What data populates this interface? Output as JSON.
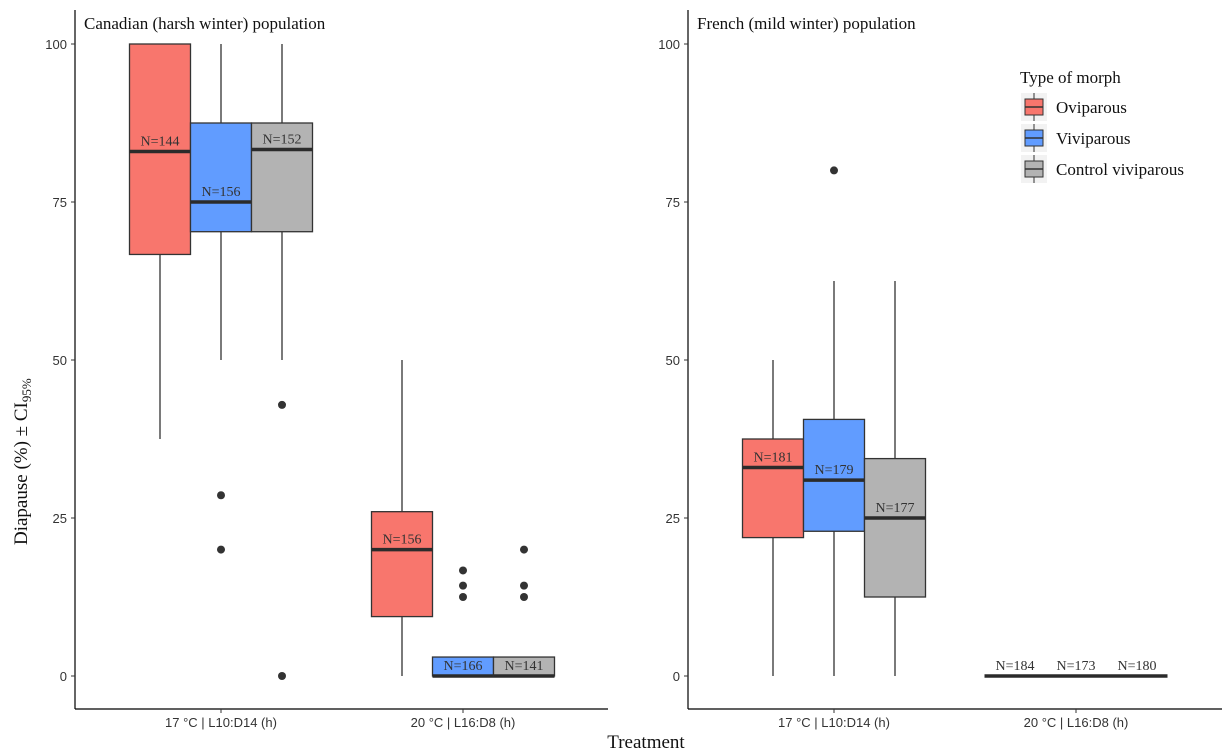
{
  "y_axis_label": "Diapause (%) ± CI95%",
  "y_axis_label_main": "Diapause (%) ± CI",
  "y_axis_label_sub": "95%",
  "x_axis_label": "Treatment",
  "legend": {
    "title": "Type of morph",
    "items": [
      {
        "label": "Oviparous",
        "color": "#F8766D"
      },
      {
        "label": "Viviparous",
        "color": "#619CFF"
      },
      {
        "label": "Control viviparous",
        "color": "#B3B3B3"
      }
    ]
  },
  "chart_data": [
    {
      "type": "box",
      "title": "Canadian (harsh winter) population",
      "ylim": [
        0,
        100
      ],
      "yticks": [
        "0",
        "25",
        "50",
        "75",
        "100"
      ],
      "categories": [
        "17 °C | L10:D14 (h)",
        "20 °C | L16:D8 (h)"
      ],
      "series": [
        {
          "name": "Oviparous",
          "color": "#F8766D",
          "boxes": [
            {
              "min": 37.5,
              "q1": 66.7,
              "median": 83,
              "q3": 100,
              "max": 100,
              "outliers": [],
              "n": "N=144"
            },
            {
              "min": 0,
              "q1": 9.4,
              "median": 20,
              "q3": 26,
              "max": 50,
              "outliers": [],
              "n": "N=156"
            }
          ]
        },
        {
          "name": "Viviparous",
          "color": "#619CFF",
          "boxes": [
            {
              "min": 50,
              "q1": 70.3,
              "median": 75,
              "q3": 87.5,
              "max": 100,
              "outliers": [
                28.6,
                20
              ],
              "n": "N=156"
            },
            {
              "min": 0,
              "q1": 0,
              "median": 0,
              "q3": 3,
              "max": 3,
              "outliers": [
                16.7,
                14.3,
                12.5
              ],
              "n": "N=166"
            }
          ]
        },
        {
          "name": "Control viviparous",
          "color": "#B3B3B3",
          "boxes": [
            {
              "min": 50,
              "q1": 70.3,
              "median": 83.3,
              "q3": 87.5,
              "max": 100,
              "outliers": [
                42.9,
                0
              ],
              "n": "N=152"
            },
            {
              "min": 0,
              "q1": 0,
              "median": 0,
              "q3": 3,
              "max": 3,
              "outliers": [
                20,
                14.3,
                12.5
              ],
              "n": "N=141"
            }
          ]
        }
      ]
    },
    {
      "type": "box",
      "title": "French (mild winter) population",
      "ylim": [
        0,
        100
      ],
      "yticks": [
        "0",
        "25",
        "50",
        "75",
        "100"
      ],
      "categories": [
        "17 °C | L10:D14 (h)",
        "20 °C | L16:D8 (h)"
      ],
      "series": [
        {
          "name": "Oviparous",
          "color": "#F8766D",
          "boxes": [
            {
              "min": 0,
              "q1": 21.9,
              "median": 33,
              "q3": 37.5,
              "max": 50,
              "outliers": [],
              "n": "N=181"
            },
            {
              "min": 0,
              "q1": 0,
              "median": 0,
              "q3": 0,
              "max": 0,
              "outliers": [],
              "n": "N=184"
            }
          ]
        },
        {
          "name": "Viviparous",
          "color": "#619CFF",
          "boxes": [
            {
              "min": 0,
              "q1": 22.9,
              "median": 31,
              "q3": 40.6,
              "max": 62.5,
              "outliers": [
                80
              ],
              "n": "N=179"
            },
            {
              "min": 0,
              "q1": 0,
              "median": 0,
              "q3": 0,
              "max": 0,
              "outliers": [],
              "n": "N=173"
            }
          ]
        },
        {
          "name": "Control viviparous",
          "color": "#B3B3B3",
          "boxes": [
            {
              "min": 0,
              "q1": 12.5,
              "median": 25,
              "q3": 34.4,
              "max": 62.5,
              "outliers": [],
              "n": "N=177"
            },
            {
              "min": 0,
              "q1": 0,
              "median": 0,
              "q3": 0,
              "max": 0,
              "outliers": [],
              "n": "N=180"
            }
          ]
        }
      ]
    }
  ]
}
